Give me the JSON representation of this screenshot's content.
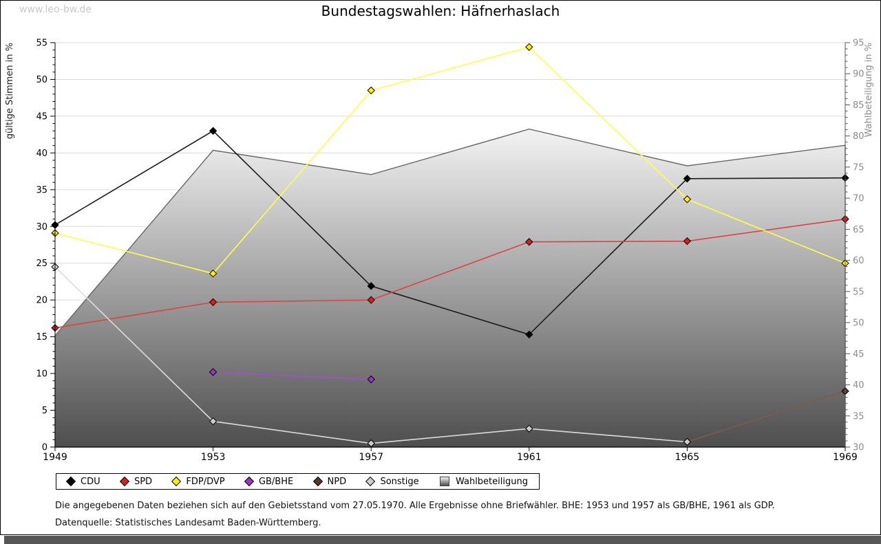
{
  "page": {
    "watermark": "www.leo-bw.de",
    "title": "Bundestagswahlen: Häfnerhaslach",
    "bottom_bar_color": "#575757"
  },
  "chart_data": {
    "type": "line",
    "title": "Bundestagswahlen: Häfnerhaslach",
    "categories": [
      "1949",
      "1953",
      "1957",
      "1961",
      "1965",
      "1969"
    ],
    "left_axis": {
      "label": "gültige Stimmen in %",
      "min": 0,
      "max": 55,
      "step": 5,
      "ticks": [
        0,
        5,
        10,
        15,
        20,
        25,
        30,
        35,
        40,
        45,
        50,
        55
      ],
      "tick_color": "#000000"
    },
    "right_axis": {
      "label": "Wahlbeteiligung in %",
      "min": 30,
      "max": 95,
      "step": 5,
      "ticks": [
        30,
        35,
        40,
        45,
        50,
        55,
        60,
        65,
        70,
        75,
        80,
        85,
        90,
        95
      ],
      "tick_color": "#8c8c8c"
    },
    "grid": true,
    "legend_position": "bottom",
    "series": [
      {
        "name": "CDU",
        "type": "line",
        "axis": "left",
        "line_color": "#1a1a1a",
        "marker_color": "#000000",
        "values": [
          30.2,
          43.0,
          21.9,
          15.3,
          36.5,
          36.6
        ]
      },
      {
        "name": "SPD",
        "type": "line",
        "axis": "left",
        "line_color": "#e04040",
        "marker_color": "#dd1c1c",
        "values": [
          16.2,
          19.7,
          20.0,
          27.9,
          28.0,
          31.0
        ]
      },
      {
        "name": "FDP/DVP",
        "type": "line",
        "axis": "left",
        "line_color": "#ffff44",
        "marker_color": "#ffee00",
        "values": [
          29.1,
          23.6,
          48.5,
          54.4,
          33.7,
          25.0
        ]
      },
      {
        "name": "GB/BHE",
        "type": "line",
        "axis": "left",
        "line_color": "#a64dd6",
        "marker_color": "#9933cc",
        "values": [
          null,
          10.2,
          9.2,
          null,
          null,
          null
        ]
      },
      {
        "name": "NPD",
        "type": "line",
        "axis": "left",
        "line_color": "#7b5b4b",
        "marker_color": "#55392b",
        "values": [
          null,
          null,
          null,
          null,
          0.7,
          7.6
        ]
      },
      {
        "name": "Sonstige",
        "type": "line",
        "axis": "left",
        "line_color": "#dcdcdc",
        "marker_color": "#cccccc",
        "values": [
          24.5,
          3.5,
          0.5,
          2.5,
          0.7,
          null
        ]
      },
      {
        "name": "Wahlbeteiligung",
        "type": "area",
        "axis": "right",
        "line_color": "#666666",
        "fill_top": "#f3f3f3",
        "fill_bottom": "#4e4e4e",
        "values": [
          47.9,
          77.7,
          73.8,
          81.1,
          75.2,
          78.5
        ]
      }
    ]
  },
  "footnotes": {
    "line1": "Die angegebenen Daten beziehen sich auf den Gebietsstand vom 27.05.1970. Alle Ergebnisse ohne Briefwähler. BHE: 1953 und 1957 als GB/BHE, 1961 als GDP.",
    "line2": "Datenquelle: Statistisches Landesamt Baden-Württemberg."
  }
}
